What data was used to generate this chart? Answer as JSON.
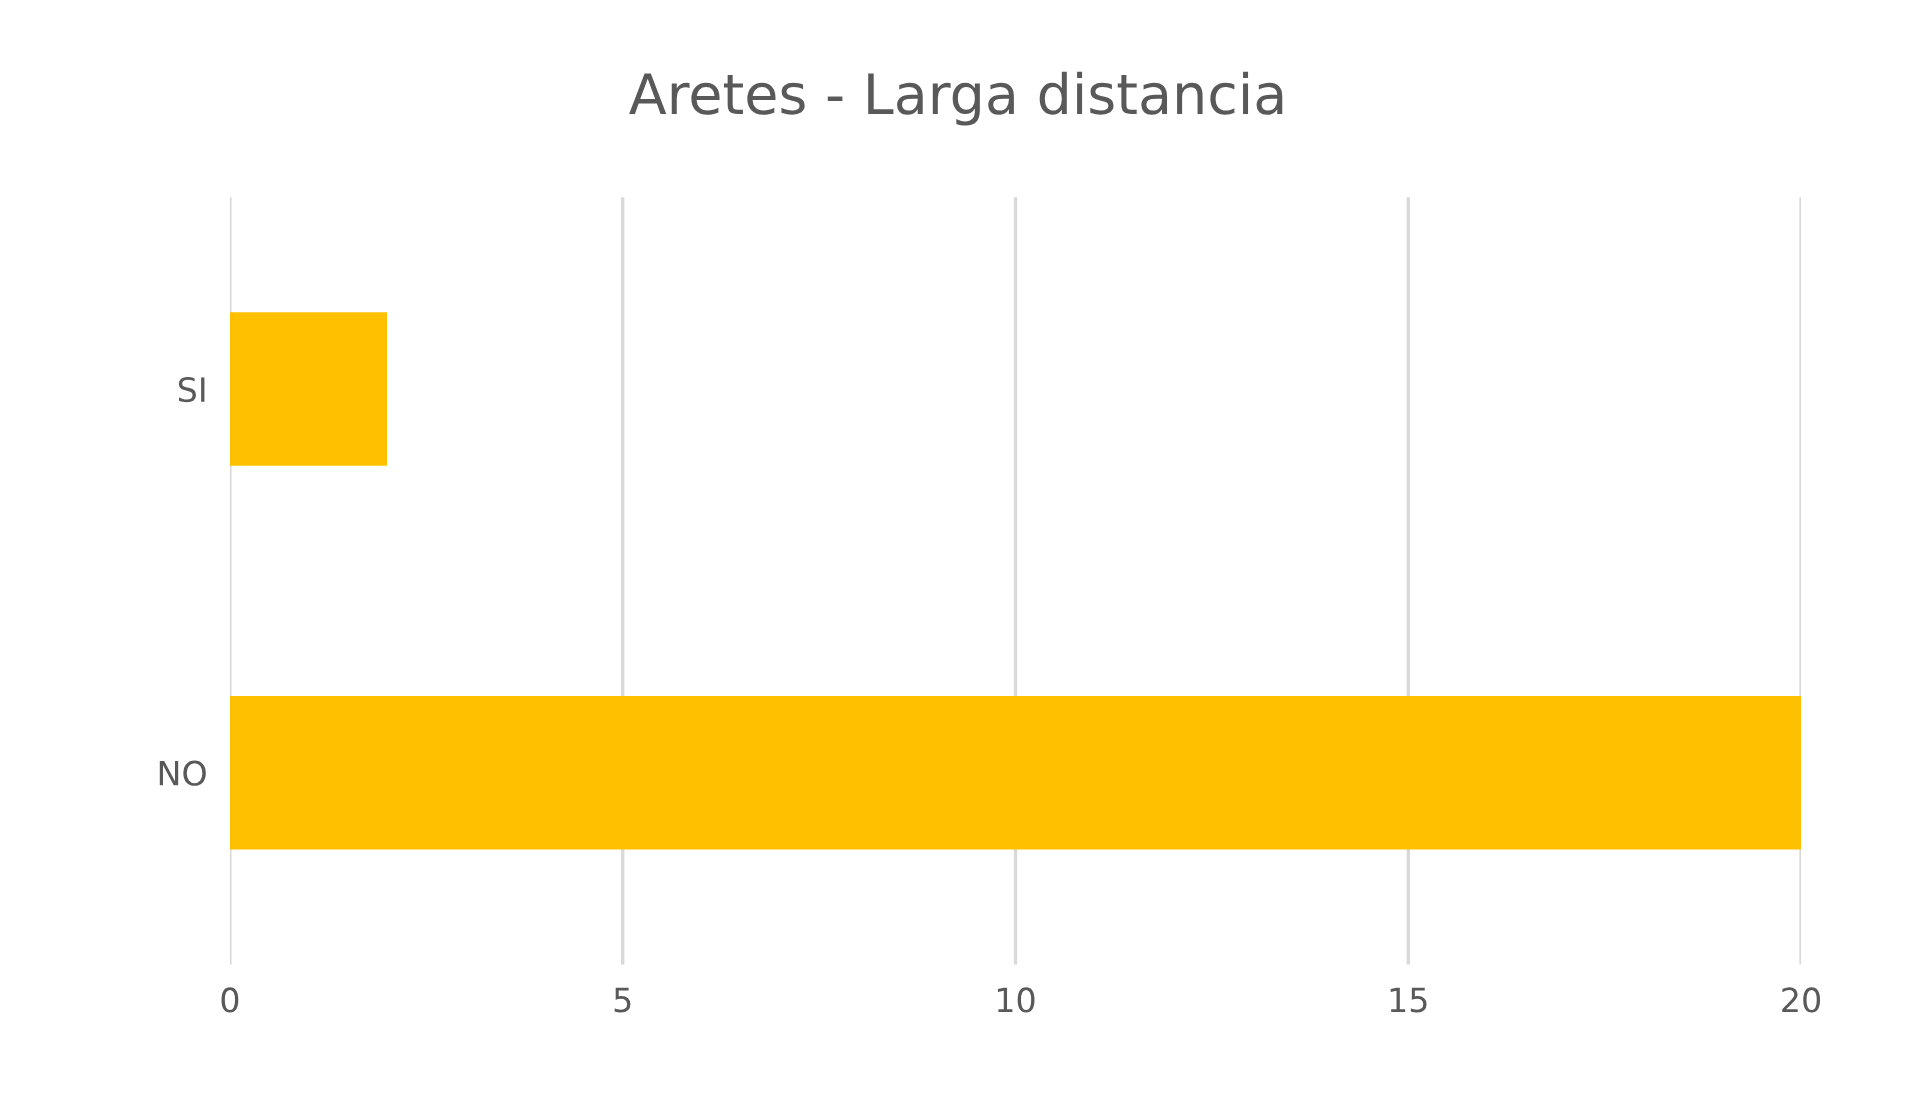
{
  "chart_data": {
    "type": "bar",
    "orientation": "horizontal",
    "title": "Aretes - Larga distancia",
    "categories": [
      "SI",
      "NO"
    ],
    "series": [
      {
        "color": "#ffc000",
        "values": [
          2,
          20
        ]
      }
    ],
    "xlim": [
      0,
      20
    ],
    "xticks": [
      0,
      5,
      10,
      15,
      20
    ],
    "grid": "x",
    "legend": false
  }
}
